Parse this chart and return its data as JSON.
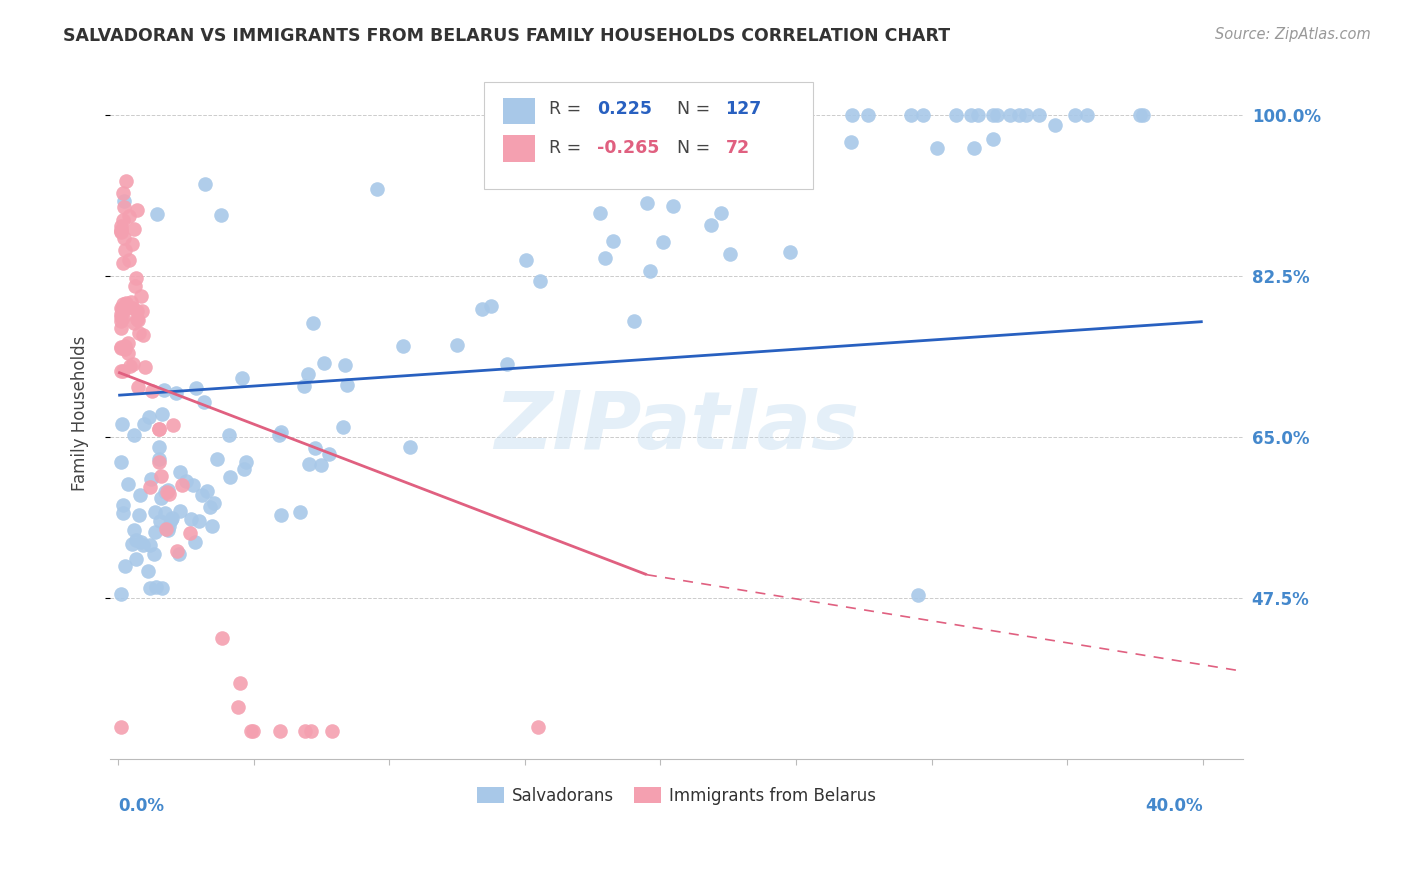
{
  "title": "SALVADORAN VS IMMIGRANTS FROM BELARUS FAMILY HOUSEHOLDS CORRELATION CHART",
  "source": "Source: ZipAtlas.com",
  "ylabel": "Family Households",
  "ylim": [
    0.3,
    1.05
  ],
  "xlim": [
    -0.003,
    0.415
  ],
  "blue_R": "0.225",
  "blue_N": "127",
  "pink_R": "-0.265",
  "pink_N": "72",
  "blue_color": "#a8c8e8",
  "pink_color": "#f4a0b0",
  "blue_line_color": "#2860c0",
  "pink_line_color": "#e06080",
  "watermark": "ZIPatlas",
  "background_color": "#ffffff",
  "grid_color": "#cccccc",
  "axis_color": "#4488cc",
  "ytick_positions": [
    0.475,
    0.65,
    0.825,
    1.0
  ],
  "ytick_labels": [
    "47.5%",
    "65.0%",
    "82.5%",
    "100.0%"
  ],
  "blue_trend": [
    0.0,
    0.4,
    0.695,
    0.775
  ],
  "pink_solid_trend": [
    0.0,
    0.195,
    0.72,
    0.5
  ],
  "pink_dashed_trend": [
    0.195,
    0.415,
    0.5,
    0.395
  ]
}
